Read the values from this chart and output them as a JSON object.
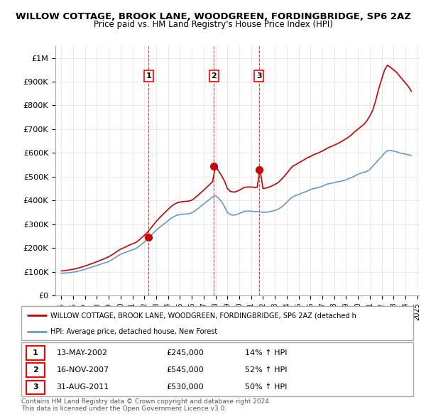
{
  "title": "WILLOW COTTAGE, BROOK LANE, WOODGREEN, FORDINGBRIDGE, SP6 2AZ",
  "subtitle": "Price paid vs. HM Land Registry's House Price Index (HPI)",
  "ylim": [
    0,
    1050000
  ],
  "yticks": [
    0,
    100000,
    200000,
    300000,
    400000,
    500000,
    600000,
    700000,
    800000,
    900000,
    1000000
  ],
  "ytick_labels": [
    "£0",
    "£100K",
    "£200K",
    "£300K",
    "£400K",
    "£500K",
    "£600K",
    "£700K",
    "£800K",
    "£900K",
    "£1M"
  ],
  "legend_line1": "WILLOW COTTAGE, BROOK LANE, WOODGREEN, FORDINGBRIDGE, SP6 2AZ (detached h",
  "legend_line2": "HPI: Average price, detached house, New Forest",
  "transactions": [
    {
      "num": 1,
      "date": "13-MAY-2002",
      "price": 245000,
      "pct": "14%",
      "dir": "↑",
      "x_year": 2002.36
    },
    {
      "num": 2,
      "date": "16-NOV-2007",
      "price": 545000,
      "pct": "52%",
      "dir": "↑",
      "x_year": 2007.87
    },
    {
      "num": 3,
      "date": "31-AUG-2011",
      "price": 530000,
      "pct": "50%",
      "dir": "↑",
      "x_year": 2011.66
    }
  ],
  "footer_line1": "Contains HM Land Registry data © Crown copyright and database right 2024.",
  "footer_line2": "This data is licensed under the Open Government Licence v3.0.",
  "red_color": "#cc0000",
  "blue_color": "#6699cc",
  "hpi_x": [
    1995.0,
    1995.25,
    1995.5,
    1995.75,
    1996.0,
    1996.25,
    1996.5,
    1996.75,
    1997.0,
    1997.25,
    1997.5,
    1997.75,
    1998.0,
    1998.25,
    1998.5,
    1998.75,
    1999.0,
    1999.25,
    1999.5,
    1999.75,
    2000.0,
    2000.25,
    2000.5,
    2000.75,
    2001.0,
    2001.25,
    2001.5,
    2001.75,
    2002.0,
    2002.25,
    2002.5,
    2002.75,
    2003.0,
    2003.25,
    2003.5,
    2003.75,
    2004.0,
    2004.25,
    2004.5,
    2004.75,
    2005.0,
    2005.25,
    2005.5,
    2005.75,
    2006.0,
    2006.25,
    2006.5,
    2006.75,
    2007.0,
    2007.25,
    2007.5,
    2007.75,
    2008.0,
    2008.25,
    2008.5,
    2008.75,
    2009.0,
    2009.25,
    2009.5,
    2009.75,
    2010.0,
    2010.25,
    2010.5,
    2010.75,
    2011.0,
    2011.25,
    2011.5,
    2011.75,
    2012.0,
    2012.25,
    2012.5,
    2012.75,
    2013.0,
    2013.25,
    2013.5,
    2013.75,
    2014.0,
    2014.25,
    2014.5,
    2014.75,
    2015.0,
    2015.25,
    2015.5,
    2015.75,
    2016.0,
    2016.25,
    2016.5,
    2016.75,
    2017.0,
    2017.25,
    2017.5,
    2017.75,
    2018.0,
    2018.25,
    2018.5,
    2018.75,
    2019.0,
    2019.25,
    2019.5,
    2019.75,
    2020.0,
    2020.25,
    2020.5,
    2020.75,
    2021.0,
    2021.25,
    2021.5,
    2021.75,
    2022.0,
    2022.25,
    2022.5,
    2022.75,
    2023.0,
    2023.25,
    2023.5,
    2023.75,
    2024.0,
    2024.25,
    2024.5
  ],
  "hpi_y": [
    93000,
    94000,
    95000,
    96000,
    98000,
    100000,
    103000,
    106000,
    110000,
    114000,
    118000,
    122000,
    126000,
    130000,
    135000,
    138000,
    143000,
    150000,
    158000,
    166000,
    173000,
    178000,
    183000,
    188000,
    192000,
    196000,
    205000,
    215000,
    225000,
    235000,
    248000,
    262000,
    275000,
    285000,
    295000,
    305000,
    315000,
    325000,
    332000,
    338000,
    340000,
    342000,
    343000,
    344000,
    348000,
    355000,
    365000,
    375000,
    385000,
    395000,
    405000,
    415000,
    420000,
    410000,
    395000,
    375000,
    350000,
    340000,
    338000,
    340000,
    345000,
    350000,
    355000,
    355000,
    355000,
    353000,
    353000,
    352000,
    350000,
    350000,
    352000,
    355000,
    358000,
    362000,
    370000,
    380000,
    392000,
    405000,
    415000,
    420000,
    425000,
    430000,
    435000,
    440000,
    445000,
    450000,
    452000,
    455000,
    460000,
    465000,
    470000,
    472000,
    475000,
    478000,
    480000,
    483000,
    487000,
    492000,
    497000,
    503000,
    510000,
    515000,
    518000,
    522000,
    530000,
    545000,
    558000,
    572000,
    585000,
    600000,
    610000,
    610000,
    608000,
    605000,
    600000,
    598000,
    595000,
    592000,
    590000
  ],
  "red_x": [
    1995.0,
    1995.25,
    1995.5,
    1995.75,
    1996.0,
    1996.25,
    1996.5,
    1996.75,
    1997.0,
    1997.25,
    1997.5,
    1997.75,
    1998.0,
    1998.25,
    1998.5,
    1998.75,
    1999.0,
    1999.25,
    1999.5,
    1999.75,
    2000.0,
    2000.25,
    2000.5,
    2000.75,
    2001.0,
    2001.25,
    2001.5,
    2001.75,
    2002.0,
    2002.25,
    2002.5,
    2002.75,
    2003.0,
    2003.25,
    2003.5,
    2003.75,
    2004.0,
    2004.25,
    2004.5,
    2004.75,
    2005.0,
    2005.25,
    2005.5,
    2005.75,
    2006.0,
    2006.25,
    2006.5,
    2006.75,
    2007.0,
    2007.25,
    2007.5,
    2007.75,
    2008.0,
    2008.25,
    2008.5,
    2008.75,
    2009.0,
    2009.25,
    2009.5,
    2009.75,
    2010.0,
    2010.25,
    2010.5,
    2010.75,
    2011.0,
    2011.25,
    2011.5,
    2011.75,
    2012.0,
    2012.25,
    2012.5,
    2012.75,
    2013.0,
    2013.25,
    2013.5,
    2013.75,
    2014.0,
    2014.25,
    2014.5,
    2014.75,
    2015.0,
    2015.25,
    2015.5,
    2015.75,
    2016.0,
    2016.25,
    2016.5,
    2016.75,
    2017.0,
    2017.25,
    2017.5,
    2017.75,
    2018.0,
    2018.25,
    2018.5,
    2018.75,
    2019.0,
    2019.25,
    2019.5,
    2019.75,
    2020.0,
    2020.25,
    2020.5,
    2020.75,
    2021.0,
    2021.25,
    2021.5,
    2021.75,
    2022.0,
    2022.25,
    2022.5,
    2022.75,
    2023.0,
    2023.25,
    2023.5,
    2023.75,
    2024.0,
    2024.25,
    2024.5
  ],
  "red_y": [
    103000,
    104000,
    106000,
    108000,
    110000,
    113000,
    116000,
    120000,
    124000,
    128000,
    133000,
    137000,
    142000,
    147000,
    152000,
    157000,
    163000,
    170000,
    178000,
    187000,
    195000,
    200000,
    206000,
    212000,
    217000,
    222000,
    231000,
    242000,
    253000,
    265000,
    280000,
    296000,
    312000,
    325000,
    338000,
    350000,
    362000,
    374000,
    383000,
    390000,
    393000,
    395000,
    396000,
    397000,
    401000,
    410000,
    421000,
    432000,
    443000,
    455000,
    467000,
    479000,
    545000,
    525000,
    505000,
    482000,
    450000,
    438000,
    435000,
    437000,
    443000,
    450000,
    456000,
    456000,
    457000,
    455000,
    455000,
    530000,
    450000,
    452000,
    456000,
    461000,
    467000,
    474000,
    486000,
    499000,
    514000,
    530000,
    544000,
    550000,
    558000,
    565000,
    572000,
    580000,
    585000,
    592000,
    597000,
    602000,
    608000,
    615000,
    622000,
    627000,
    633000,
    638000,
    645000,
    652000,
    660000,
    668000,
    678000,
    690000,
    700000,
    710000,
    720000,
    735000,
    755000,
    780000,
    820000,
    870000,
    910000,
    950000,
    970000,
    960000,
    950000,
    940000,
    925000,
    910000,
    895000,
    880000,
    860000
  ],
  "xlim": [
    1994.5,
    2025.2
  ],
  "xticks": [
    1995,
    1996,
    1997,
    1998,
    1999,
    2000,
    2001,
    2002,
    2003,
    2004,
    2005,
    2006,
    2007,
    2008,
    2009,
    2010,
    2011,
    2012,
    2013,
    2014,
    2015,
    2016,
    2017,
    2018,
    2019,
    2020,
    2021,
    2022,
    2023,
    2024,
    2025
  ]
}
